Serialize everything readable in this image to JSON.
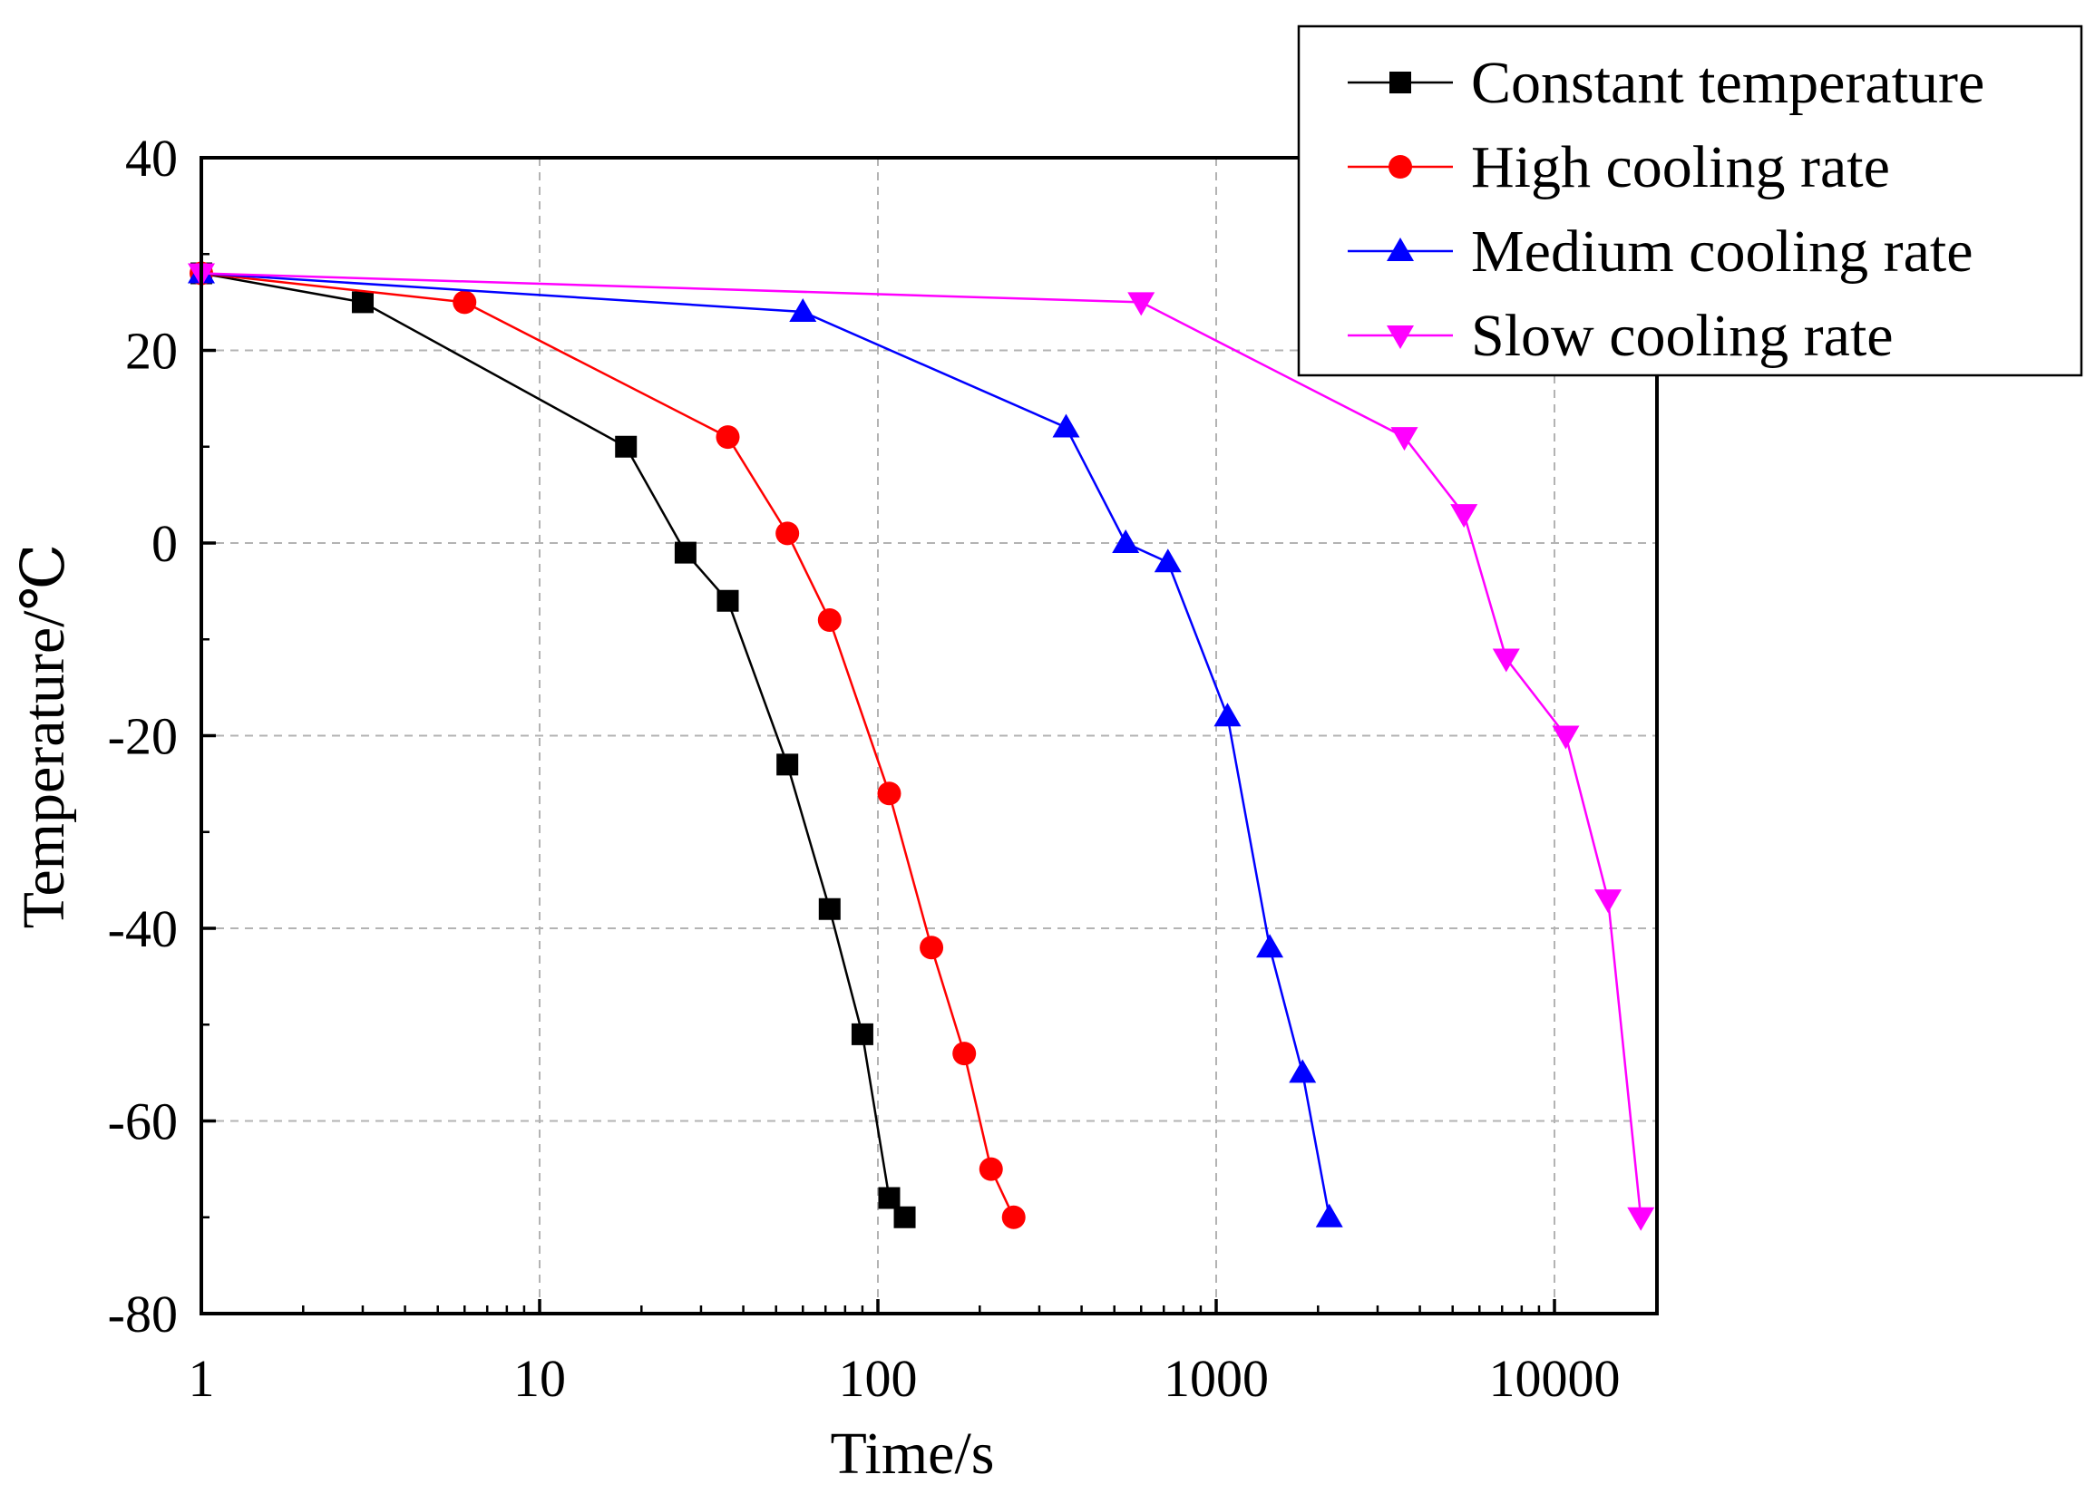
{
  "chart_data": {
    "type": "line",
    "title": "",
    "xlabel": "Time/s",
    "ylabel": "Temperature/℃",
    "xscale": "log",
    "xlim": [
      1,
      20000
    ],
    "ylim": [
      -80,
      40
    ],
    "x_ticks": [
      {
        "value": 1,
        "label": "1"
      },
      {
        "value": 10,
        "label": "10"
      },
      {
        "value": 100,
        "label": "100"
      },
      {
        "value": 1000,
        "label": "1000"
      },
      {
        "value": 10000,
        "label": "10000"
      }
    ],
    "y_ticks": [
      {
        "value": 40,
        "label": "40"
      },
      {
        "value": 20,
        "label": "20"
      },
      {
        "value": 0,
        "label": "0"
      },
      {
        "value": -20,
        "label": "-20"
      },
      {
        "value": -40,
        "label": "-40"
      },
      {
        "value": -60,
        "label": "-60"
      },
      {
        "value": -80,
        "label": "-80"
      }
    ],
    "grid": true,
    "legend_position": "top-right",
    "series": [
      {
        "name": "Constant temperature",
        "color": "#000000",
        "marker": "square",
        "x": [
          1,
          3,
          18,
          27,
          36,
          54,
          72,
          90,
          108,
          120
        ],
        "y": [
          28,
          25,
          10,
          -1,
          -6,
          -23,
          -38,
          -51,
          -68,
          -70
        ]
      },
      {
        "name": "High cooling rate",
        "color": "#ff0000",
        "marker": "circle",
        "x": [
          1,
          6,
          36,
          54,
          72,
          108,
          144,
          180,
          216,
          252
        ],
        "y": [
          28,
          25,
          11,
          1,
          -8,
          -26,
          -42,
          -53,
          -65,
          -70
        ]
      },
      {
        "name": "Medium cooling rate",
        "color": "#0000ff",
        "marker": "triangle-up",
        "x": [
          1,
          60,
          360,
          540,
          720,
          1080,
          1440,
          1800,
          2160
        ],
        "y": [
          28,
          24,
          12,
          0,
          -2,
          -18,
          -42,
          -55,
          -70
        ]
      },
      {
        "name": "Slow cooling rate",
        "color": "#ff00ff",
        "marker": "triangle-down",
        "x": [
          1,
          600,
          3600,
          5400,
          7200,
          10800,
          14400,
          18000
        ],
        "y": [
          28,
          25,
          11,
          3,
          -12,
          -20,
          -37,
          -70
        ]
      }
    ]
  }
}
